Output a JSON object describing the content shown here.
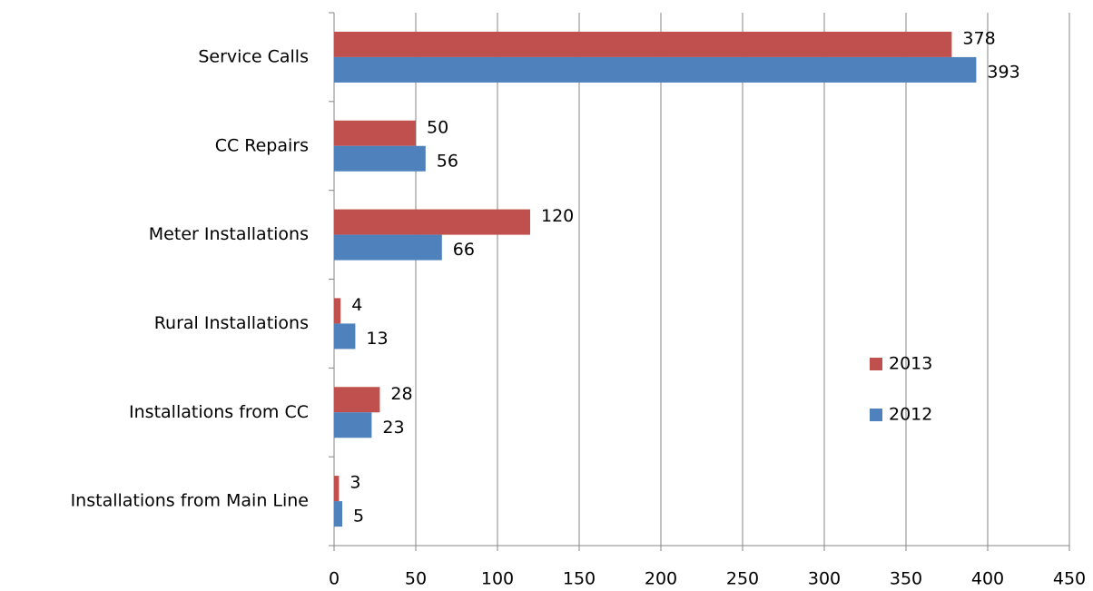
{
  "chart_data": {
    "type": "barh",
    "categories": [
      "Service Calls",
      "CC Repairs",
      "Meter Installations",
      "Rural Installations",
      "Installations from CC",
      "Installations from Main Line"
    ],
    "series": [
      {
        "name": "2013",
        "color": "#c0504d",
        "values": [
          378,
          50,
          120,
          4,
          28,
          3
        ]
      },
      {
        "name": "2012",
        "color": "#4f81bd",
        "values": [
          393,
          56,
          66,
          13,
          23,
          5
        ]
      }
    ],
    "xlim": [
      0,
      450
    ],
    "xticks": [
      0,
      50,
      100,
      150,
      200,
      250,
      300,
      350,
      400,
      450
    ],
    "grid": true,
    "legend": "right"
  }
}
